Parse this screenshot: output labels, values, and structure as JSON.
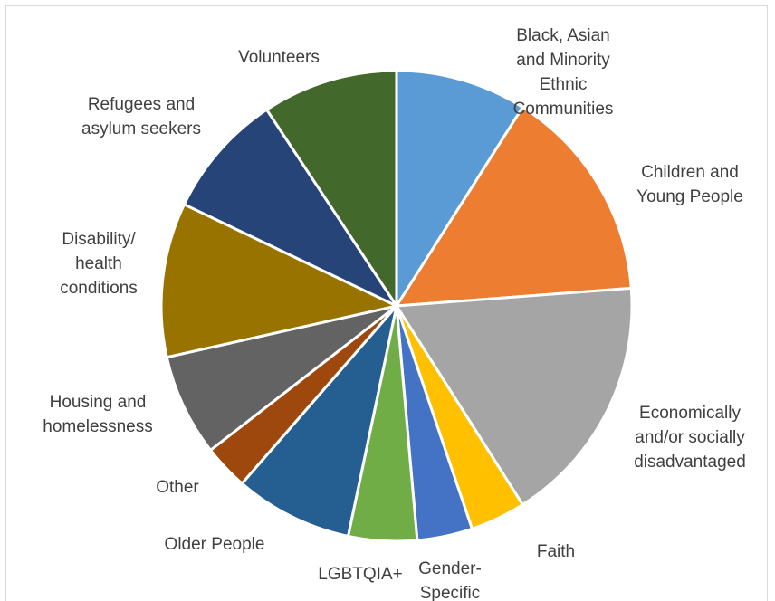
{
  "chart_data": {
    "type": "pie",
    "title": "",
    "legend": "none",
    "labels_position": "outside",
    "start_angle_deg": 0,
    "direction": "clockwise",
    "slices": [
      {
        "label": "Black, Asian and Minority Ethnic Communities",
        "lines": [
          "Black, Asian",
          "and Minority",
          "Ethnic",
          "Communities"
        ],
        "value": 9.0,
        "color": "#5b9bd5"
      },
      {
        "label": "Children and Young People",
        "lines": [
          "Children and",
          "Young People"
        ],
        "value": 14.8,
        "color": "#ed7d31"
      },
      {
        "label": "Economically and/or socially disadvantaged",
        "lines": [
          "Economically",
          "and/or socially",
          "disadvantaged"
        ],
        "value": 17.2,
        "color": "#a5a5a5"
      },
      {
        "label": "Faith",
        "lines": [
          "Faith"
        ],
        "value": 3.8,
        "color": "#ffc000"
      },
      {
        "label": "Gender-Specific",
        "lines": [
          "Gender-",
          "Specific"
        ],
        "value": 3.8,
        "color": "#4472c4"
      },
      {
        "label": "LGBTQIA+",
        "lines": [
          "LGBTQIA+"
        ],
        "value": 4.7,
        "color": "#70ad47"
      },
      {
        "label": "Older People",
        "lines": [
          "Older People"
        ],
        "value": 8.1,
        "color": "#255e91"
      },
      {
        "label": "Other",
        "lines": [
          "Other"
        ],
        "value": 3.1,
        "color": "#9e480e"
      },
      {
        "label": "Housing and homelessness",
        "lines": [
          "Housing and",
          "homelessness"
        ],
        "value": 7.0,
        "color": "#636363"
      },
      {
        "label": "Disability/ health conditions",
        "lines": [
          "Disability/",
          "health",
          "conditions"
        ],
        "value": 10.6,
        "color": "#997300"
      },
      {
        "label": "Refugees and asylum seekers",
        "lines": [
          "Refugees and",
          "asylum seekers"
        ],
        "value": 8.6,
        "color": "#264478"
      },
      {
        "label": "Volunteers",
        "lines": [
          "Volunteers"
        ],
        "value": 9.3,
        "color": "#43682b"
      }
    ]
  }
}
